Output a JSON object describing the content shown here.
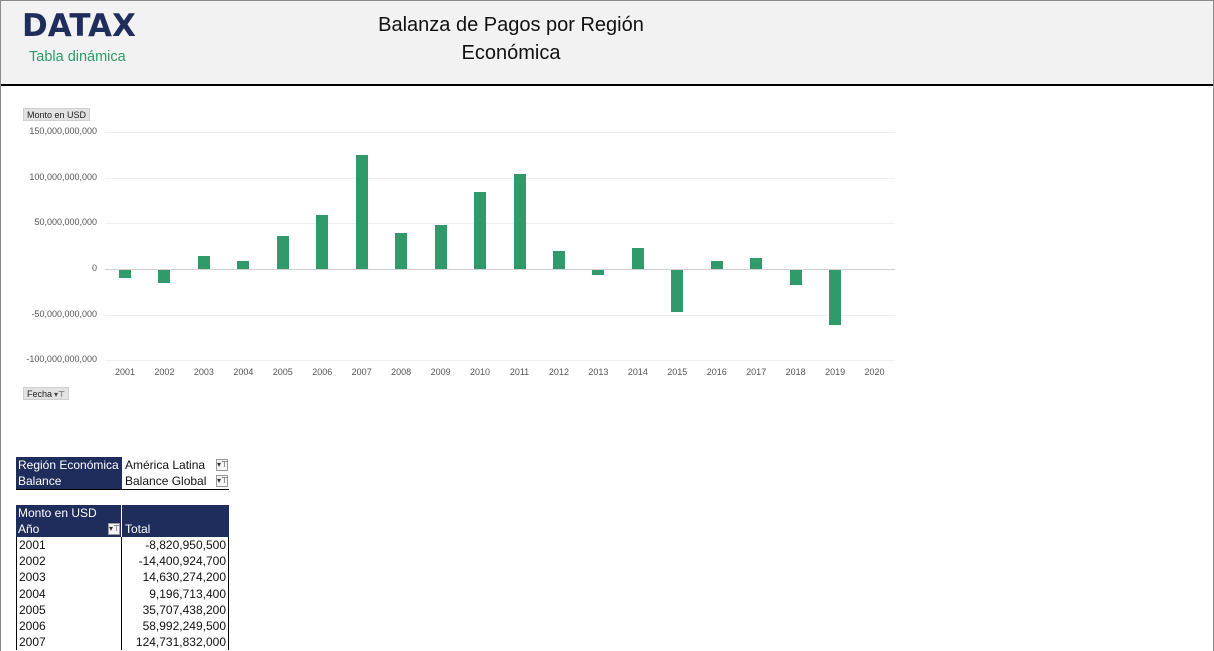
{
  "header": {
    "logo": "DATAX",
    "subtitle": "Tabla dinámica",
    "title_line1": "Balanza de Pagos por Región",
    "title_line2": "Económica"
  },
  "chart_controls": {
    "value_field_button": "Monto en USD",
    "axis_field_button": "Fecha",
    "axis_field_icons": "▾⊤"
  },
  "chart_data": {
    "type": "bar",
    "title": "",
    "xlabel": "Fecha",
    "ylabel": "Monto en USD",
    "ylim": [
      -100000000000,
      150000000000
    ],
    "yticks": [
      "150,000,000,000",
      "100,000,000,000",
      "50,000,000,000",
      "0",
      "-50,000,000,000",
      "-100,000,000,000"
    ],
    "grid": true,
    "legend": "none",
    "color": "#319a6b",
    "categories": [
      "2001",
      "2002",
      "2003",
      "2004",
      "2005",
      "2006",
      "2007",
      "2008",
      "2009",
      "2010",
      "2011",
      "2012",
      "2013",
      "2014",
      "2015",
      "2016",
      "2017",
      "2018",
      "2019",
      "2020"
    ],
    "values": [
      -8820950500,
      -14400924700,
      14630274200,
      9196713400,
      35707438200,
      58992249500,
      124731832000,
      38900000000,
      48600000000,
      84000000000,
      103500000000,
      19500000000,
      -5500000000,
      22500000000,
      -46500000000,
      9000000000,
      12500000000,
      -16500000000,
      -60000000000,
      0
    ]
  },
  "filters": [
    {
      "label": "Región Económica",
      "value": "América Latina"
    },
    {
      "label": "Balance",
      "value": "Balance Global"
    }
  ],
  "pivot": {
    "header_top": "Monto en USD",
    "row_field": "Año",
    "value_col": "Total",
    "rows": [
      {
        "year": "2001",
        "total": "-8,820,950,500"
      },
      {
        "year": "2002",
        "total": "-14,400,924,700"
      },
      {
        "year": "2003",
        "total": "14,630,274,200"
      },
      {
        "year": "2004",
        "total": "9,196,713,400"
      },
      {
        "year": "2005",
        "total": "35,707,438,200"
      },
      {
        "year": "2006",
        "total": "58,992,249,500"
      },
      {
        "year": "2007",
        "total": "124,731,832,000"
      }
    ]
  },
  "icons": {
    "filter_dropdown": "▾⊤"
  }
}
